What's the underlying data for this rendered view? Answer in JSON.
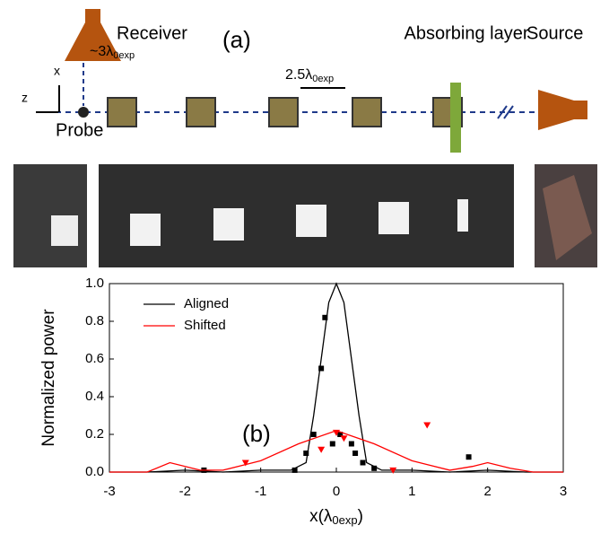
{
  "diagram": {
    "label": "(a)",
    "receiver": "Receiver",
    "absorber": "Absorbing layer",
    "source": "Source",
    "probe": "Probe",
    "axis_x": "x",
    "axis_z": "z",
    "receiver_distance": {
      "main": "~3λ",
      "sub": "0exp"
    },
    "spacing": {
      "main": "2.5λ",
      "sub": "0exp"
    }
  },
  "chart_data": {
    "type": "line",
    "annotation": "(b)",
    "ylabel": "Normalized power",
    "xlabel": {
      "main": "x(λ",
      "sub": "0exp",
      "end": ")"
    },
    "xlim": [
      -3,
      3
    ],
    "ylim": [
      0,
      1
    ],
    "xticks": [
      -3,
      -2,
      -1,
      0,
      1,
      2,
      3
    ],
    "yticks": [
      {
        "value": 0,
        "label": "0.0"
      },
      0.2,
      0.4,
      0.6,
      0.8,
      {
        "value": 1,
        "label": "1.0"
      }
    ],
    "series": [
      {
        "name": "Aligned",
        "color": "#000000",
        "x": [
          -3,
          -2.5,
          -2,
          -1.5,
          -1,
          -0.6,
          -0.4,
          -0.3,
          -0.2,
          -0.1,
          0,
          0.1,
          0.2,
          0.3,
          0.4,
          0.6,
          1,
          1.5,
          2,
          2.5,
          3
        ],
        "values": [
          0,
          0,
          0.01,
          0,
          0.01,
          0.01,
          0.05,
          0.3,
          0.6,
          0.9,
          1.0,
          0.9,
          0.6,
          0.3,
          0.05,
          0.01,
          0.01,
          0,
          0.01,
          0,
          0
        ],
        "markers": {
          "x": [
            -1.75,
            -0.55,
            -0.4,
            -0.3,
            -0.2,
            -0.15,
            -0.05,
            0.05,
            0.2,
            0.25,
            0.35,
            0.5,
            1.75
          ],
          "values": [
            0.01,
            0.01,
            0.1,
            0.2,
            0.55,
            0.82,
            0.15,
            0.2,
            0.15,
            0.1,
            0.05,
            0.02,
            0.08
          ]
        }
      },
      {
        "name": "Shifted",
        "color": "#ff0000",
        "x": [
          -3,
          -2.5,
          -2.2,
          -1.8,
          -1.5,
          -1.2,
          -1,
          -0.5,
          0,
          0.5,
          1,
          1.2,
          1.5,
          1.8,
          2,
          2.3,
          2.6,
          3
        ],
        "values": [
          0,
          0,
          0.05,
          0.01,
          0.01,
          0.04,
          0.06,
          0.15,
          0.22,
          0.15,
          0.06,
          0.04,
          0.01,
          0.03,
          0.05,
          0.02,
          0,
          0
        ],
        "markers": {
          "x": [
            -1.2,
            -0.2,
            0,
            0.1,
            0.75,
            1.2
          ],
          "values": [
            0.05,
            0.12,
            0.21,
            0.18,
            0.01,
            0.25
          ]
        }
      }
    ]
  }
}
